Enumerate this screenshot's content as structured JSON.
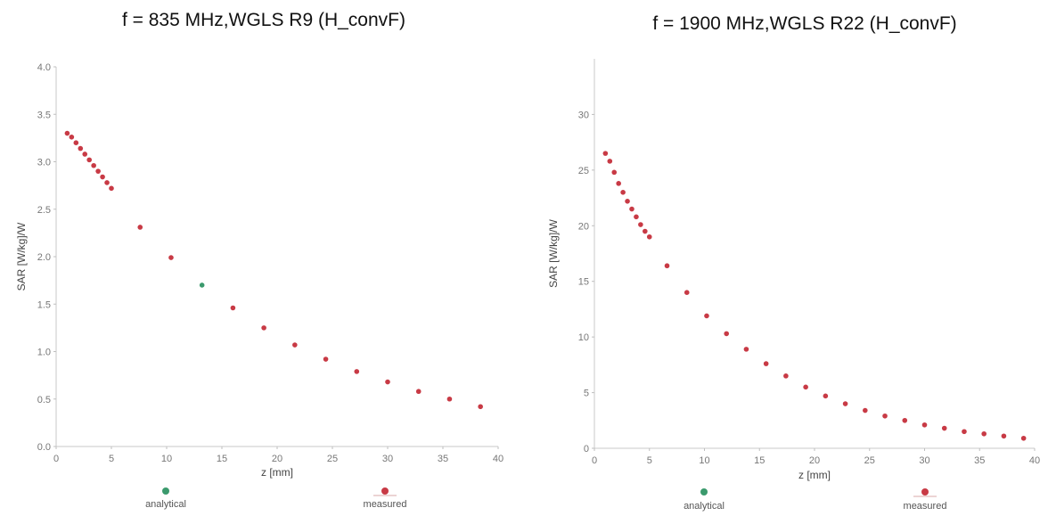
{
  "chart_data": [
    {
      "type": "scatter",
      "title": "f = 835 MHz,WGLS R9 (H_convF)",
      "xlabel": "z [mm]",
      "ylabel": "SAR [W/kg]/W",
      "xlim": [
        0,
        40
      ],
      "ylim": [
        0,
        4.0
      ],
      "x_ticks": [
        "0",
        "5",
        "10",
        "15",
        "20",
        "25",
        "30",
        "35",
        "40"
      ],
      "y_ticks": [
        "0.0",
        "0.5",
        "1.0",
        "1.5",
        "2.0",
        "2.5",
        "3.0",
        "3.5",
        "4.0"
      ],
      "legend": [
        "analytical",
        "measured"
      ],
      "series": [
        {
          "name": "analytical",
          "color": "#3b9a6d",
          "x": [
            13.2
          ],
          "y": [
            1.7
          ]
        },
        {
          "name": "measured",
          "color": "#c83a45",
          "x": [
            1.0,
            1.4,
            1.8,
            2.2,
            2.6,
            3.0,
            3.4,
            3.8,
            4.2,
            4.6,
            5.0,
            7.6,
            10.4,
            16.0,
            18.8,
            21.6,
            24.4,
            27.2,
            30.0,
            32.8,
            35.6,
            38.4
          ],
          "y": [
            3.3,
            3.26,
            3.2,
            3.14,
            3.08,
            3.02,
            2.96,
            2.9,
            2.84,
            2.78,
            2.72,
            2.31,
            1.99,
            1.46,
            1.25,
            1.07,
            0.92,
            0.79,
            0.68,
            0.58,
            0.5,
            0.42
          ]
        }
      ],
      "grid": false,
      "legend_placement": "bottom"
    },
    {
      "type": "scatter",
      "title": "f = 1900 MHz,WGLS R22 (H_convF)",
      "xlabel": "z [mm]",
      "ylabel": "SAR [W/kg]/W",
      "xlim": [
        0,
        40
      ],
      "ylim": [
        0,
        35
      ],
      "x_ticks": [
        "0",
        "5",
        "10",
        "15",
        "20",
        "25",
        "30",
        "35",
        "40"
      ],
      "y_ticks": [
        "0",
        "5",
        "10",
        "15",
        "20",
        "25",
        "30"
      ],
      "legend": [
        "analytical",
        "measured"
      ],
      "series": [
        {
          "name": "analytical",
          "color": "#3b9a6d",
          "x": [],
          "y": []
        },
        {
          "name": "measured",
          "color": "#c83a45",
          "x": [
            1.0,
            1.4,
            1.8,
            2.2,
            2.6,
            3.0,
            3.4,
            3.8,
            4.2,
            4.6,
            5.0,
            6.6,
            8.4,
            10.2,
            12.0,
            13.8,
            15.6,
            17.4,
            19.2,
            21.0,
            22.8,
            24.6,
            26.4,
            28.2,
            30.0,
            31.8,
            33.6,
            35.4,
            37.2,
            39.0
          ],
          "y": [
            26.5,
            25.8,
            24.8,
            23.8,
            23.0,
            22.2,
            21.5,
            20.8,
            20.1,
            19.5,
            19.0,
            16.4,
            14.0,
            11.9,
            10.3,
            8.9,
            7.6,
            6.5,
            5.5,
            4.7,
            4.0,
            3.4,
            2.9,
            2.5,
            2.1,
            1.8,
            1.5,
            1.3,
            1.1,
            0.9
          ]
        }
      ],
      "grid": false,
      "legend_placement": "bottom"
    }
  ]
}
